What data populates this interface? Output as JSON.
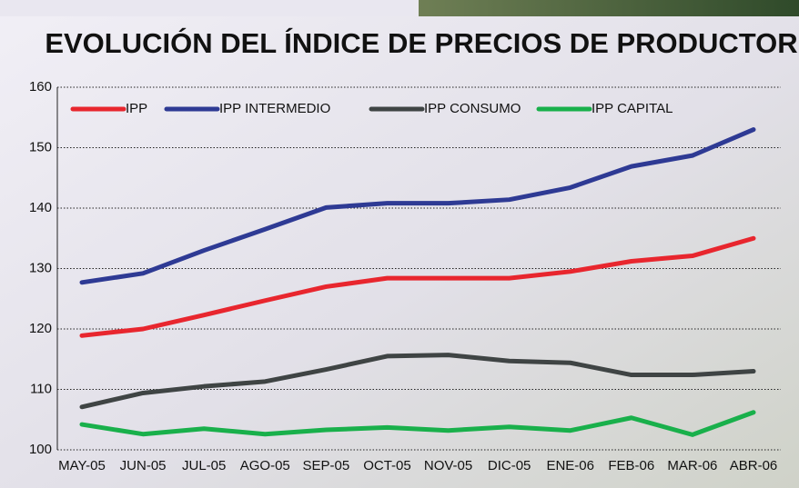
{
  "chart_data": {
    "type": "line",
    "title": "EVOLUCIÓN DEL ÍNDICE DE PRECIOS DE PRODUCTOR",
    "categories": [
      "MAY-05",
      "JUN-05",
      "JUL-05",
      "AGO-05",
      "SEP-05",
      "OCT-05",
      "NOV-05",
      "DIC-05",
      "ENE-06",
      "FEB-06",
      "MAR-06",
      "ABR-06"
    ],
    "series": [
      {
        "name": "IPP",
        "color": "#e8262e",
        "values": [
          118.9,
          120.0,
          122.3,
          124.7,
          127.0,
          128.4,
          128.4,
          128.4,
          129.5,
          131.2,
          132.1,
          135.0
        ]
      },
      {
        "name": "IPP INTERMEDIO",
        "color": "#2e3a94",
        "values": [
          127.7,
          129.2,
          133.0,
          136.5,
          140.1,
          140.8,
          140.8,
          141.4,
          143.4,
          146.9,
          148.7,
          153.0
        ]
      },
      {
        "name": "IPP CONSUMO",
        "color": "#3f4444",
        "values": [
          107.1,
          109.4,
          110.5,
          111.3,
          113.3,
          115.5,
          115.7,
          114.7,
          114.4,
          112.4,
          112.4,
          113.0
        ]
      },
      {
        "name": "IPP CAPITAL",
        "color": "#19b04b",
        "values": [
          104.2,
          102.6,
          103.5,
          102.6,
          103.3,
          103.7,
          103.2,
          103.8,
          103.2,
          105.3,
          102.5,
          106.2
        ]
      }
    ],
    "ylim": [
      100,
      160
    ],
    "yticks": [
      100,
      110,
      120,
      130,
      140,
      150,
      160
    ],
    "grid": true
  }
}
